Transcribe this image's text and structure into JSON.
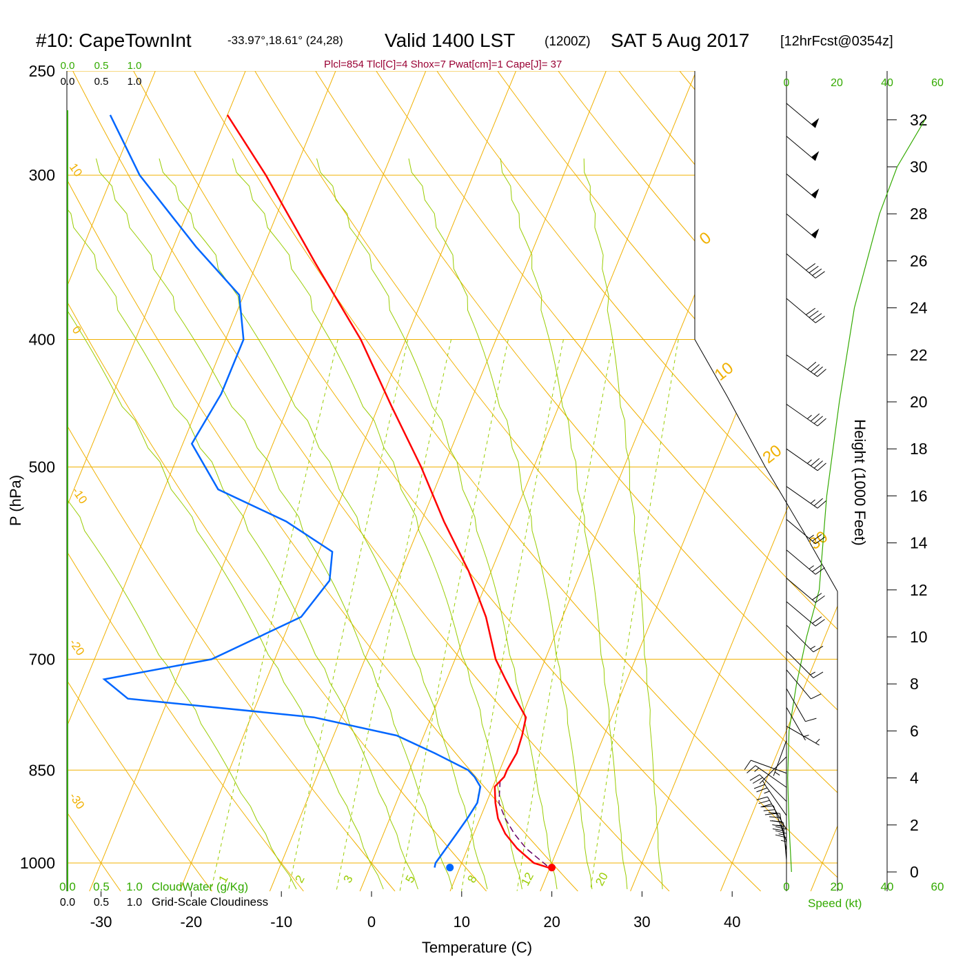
{
  "header": {
    "station": "#10: CapeTownInt",
    "coords": "-33.97°,18.61° (24,28)",
    "valid": "Valid 1400 LST",
    "utc": "(1200Z)",
    "date": "SAT 5 Aug 2017",
    "forecast": "[12hrFcst@0354z]",
    "indices": "Plcl=854 Tlcl[C]=4 Shox=7 Pwat[cm]=1 Cape[J]= 37"
  },
  "colors": {
    "isotherm": "#f0b000",
    "mixing_ratio": "#99cc00",
    "temperature": "#ff0000",
    "dewpoint": "#0066ff",
    "parcel": "#660066",
    "green_text": "#33aa00",
    "index_text": "#990033"
  },
  "chart_data": {
    "type": "line",
    "xlabel": "Temperature (C)",
    "ylabel": "P (hPa)",
    "y2label": "Height (1000 Feet)",
    "x_ticks": [
      "-30",
      "-20",
      "-10",
      "0",
      "10",
      "20",
      "30",
      "40"
    ],
    "pressure_ticks": [
      "250",
      "300",
      "400",
      "500",
      "700",
      "850",
      "1000"
    ],
    "height_ticks": [
      "0",
      "2",
      "4",
      "6",
      "8",
      "10",
      "12",
      "14",
      "16",
      "18",
      "20",
      "22",
      "24",
      "26",
      "28",
      "30",
      "32"
    ],
    "isotherm_labels_left": [
      "10",
      "0",
      "-10",
      "-20",
      "-30"
    ],
    "isotherm_labels_right": [
      "0",
      "10",
      "20",
      "30"
    ],
    "mixing_ratio_labels": [
      "1",
      "2",
      "3",
      "5",
      "8",
      "12",
      "20"
    ],
    "cloud_scale_top_green": [
      "0.0",
      "0.5",
      "1.0"
    ],
    "cloud_scale_top_black": [
      "0.0",
      "0.5",
      "1.0"
    ],
    "cloud_scale_bottom_green": [
      "0.0",
      "0.5",
      "1.0"
    ],
    "cloud_scale_bottom_black": [
      "0.0",
      "0.5",
      "1.0"
    ],
    "cloudwater_label": "CloudWater (g/Kg)",
    "cloudiness_label": "Grid-Scale Cloudiness",
    "speed_ticks_top": [
      "0",
      "20",
      "40",
      "60"
    ],
    "speed_ticks_bottom": [
      "0",
      "20",
      "40",
      "60"
    ],
    "speed_label": "Speed (kt)",
    "temperature_profile": [
      {
        "p": 1008,
        "t": 19.8
      },
      {
        "p": 1000,
        "t": 18.0
      },
      {
        "p": 975,
        "t": 15.5
      },
      {
        "p": 950,
        "t": 13.5
      },
      {
        "p": 925,
        "t": 12.0
      },
      {
        "p": 900,
        "t": 11.0
      },
      {
        "p": 875,
        "t": 10.2
      },
      {
        "p": 860,
        "t": 10.8
      },
      {
        "p": 850,
        "t": 10.8
      },
      {
        "p": 825,
        "t": 11.1
      },
      {
        "p": 800,
        "t": 10.9
      },
      {
        "p": 775,
        "t": 10.5
      },
      {
        "p": 750,
        "t": 8.5
      },
      {
        "p": 725,
        "t": 6.5
      },
      {
        "p": 700,
        "t": 4.5
      },
      {
        "p": 650,
        "t": 1.5
      },
      {
        "p": 600,
        "t": -2.5
      },
      {
        "p": 550,
        "t": -7.5
      },
      {
        "p": 500,
        "t": -12.5
      },
      {
        "p": 450,
        "t": -18.5
      },
      {
        "p": 400,
        "t": -25.0
      },
      {
        "p": 350,
        "t": -33.5
      },
      {
        "p": 300,
        "t": -43.0
      },
      {
        "p": 270,
        "t": -50.0
      }
    ],
    "dewpoint_profile": [
      {
        "p": 1008,
        "t": 7.2
      },
      {
        "p": 1000,
        "t": 7.1
      },
      {
        "p": 975,
        "t": 7.6
      },
      {
        "p": 950,
        "t": 8.1
      },
      {
        "p": 925,
        "t": 8.6
      },
      {
        "p": 900,
        "t": 9.0
      },
      {
        "p": 875,
        "t": 8.6
      },
      {
        "p": 860,
        "t": 7.5
      },
      {
        "p": 850,
        "t": 6.5
      },
      {
        "p": 825,
        "t": 2.0
      },
      {
        "p": 800,
        "t": -3.0
      },
      {
        "p": 775,
        "t": -13.0
      },
      {
        "p": 750,
        "t": -34.5
      },
      {
        "p": 725,
        "t": -38.0
      },
      {
        "p": 700,
        "t": -27.0
      },
      {
        "p": 650,
        "t": -19.0
      },
      {
        "p": 610,
        "t": -17.5
      },
      {
        "p": 580,
        "t": -18.5
      },
      {
        "p": 550,
        "t": -25.0
      },
      {
        "p": 520,
        "t": -34.0
      },
      {
        "p": 480,
        "t": -39.0
      },
      {
        "p": 440,
        "t": -38.0
      },
      {
        "p": 400,
        "t": -38.0
      },
      {
        "p": 370,
        "t": -40.5
      },
      {
        "p": 340,
        "t": -47.5
      },
      {
        "p": 300,
        "t": -57.0
      },
      {
        "p": 270,
        "t": -63.0
      }
    ],
    "parcel_profile": [
      {
        "p": 1005,
        "t": 19.6
      },
      {
        "p": 975,
        "t": 16.5
      },
      {
        "p": 950,
        "t": 14.5
      },
      {
        "p": 925,
        "t": 12.8
      },
      {
        "p": 900,
        "t": 11.4
      },
      {
        "p": 865,
        "t": 10.5
      }
    ],
    "surface_temp": {
      "p": 1008,
      "t": 20.2
    },
    "surface_dewpoint": {
      "p": 1008,
      "t": 8.9
    },
    "height_profile": [
      {
        "h": 0,
        "kt": 2
      },
      {
        "h": 2,
        "kt": 1
      },
      {
        "h": 4,
        "kt": 0.5
      },
      {
        "h": 6,
        "kt": 1
      },
      {
        "h": 8,
        "kt": 4
      },
      {
        "h": 10,
        "kt": 8
      },
      {
        "h": 12,
        "kt": 13
      },
      {
        "h": 16,
        "kt": 16
      },
      {
        "h": 20,
        "kt": 21
      },
      {
        "h": 24,
        "kt": 27
      },
      {
        "h": 28,
        "kt": 37
      },
      {
        "h": 30,
        "kt": 44
      },
      {
        "h": 32,
        "kt": 55
      }
    ],
    "wind_barbs": [
      {
        "h": 0.2,
        "dir": 180,
        "kt": 35
      },
      {
        "h": 0.5,
        "dir": 175,
        "kt": 35
      },
      {
        "h": 0.9,
        "dir": 170,
        "kt": 35
      },
      {
        "h": 1.3,
        "dir": 160,
        "kt": 30
      },
      {
        "h": 1.8,
        "dir": 150,
        "kt": 30
      },
      {
        "h": 2.4,
        "dir": 145,
        "kt": 25
      },
      {
        "h": 3.0,
        "dir": 135,
        "kt": 20
      },
      {
        "h": 3.6,
        "dir": 125,
        "kt": 15
      },
      {
        "h": 4.2,
        "dir": 110,
        "kt": 10
      },
      {
        "h": 4.9,
        "dir": 45,
        "kt": 5
      },
      {
        "h": 5.6,
        "dir": 20,
        "kt": 5
      },
      {
        "h": 6.2,
        "dir": 300,
        "kt": 5
      },
      {
        "h": 7.0,
        "dir": 330,
        "kt": 5
      },
      {
        "h": 7.8,
        "dir": 330,
        "kt": 10
      },
      {
        "h": 8.6,
        "dir": 320,
        "kt": 10
      },
      {
        "h": 9.4,
        "dir": 315,
        "kt": 15
      },
      {
        "h": 10.5,
        "dir": 315,
        "kt": 15
      },
      {
        "h": 11.5,
        "dir": 310,
        "kt": 20
      },
      {
        "h": 12.5,
        "dir": 310,
        "kt": 20
      },
      {
        "h": 13.7,
        "dir": 310,
        "kt": 25
      },
      {
        "h": 15.0,
        "dir": 310,
        "kt": 25
      },
      {
        "h": 16.4,
        "dir": 305,
        "kt": 25
      },
      {
        "h": 18.0,
        "dir": 305,
        "kt": 35
      },
      {
        "h": 19.9,
        "dir": 305,
        "kt": 35
      },
      {
        "h": 22.0,
        "dir": 305,
        "kt": 40
      },
      {
        "h": 24.4,
        "dir": 310,
        "kt": 40
      },
      {
        "h": 26.3,
        "dir": 310,
        "kt": 40
      },
      {
        "h": 28.0,
        "dir": 310,
        "kt": 50
      },
      {
        "h": 29.7,
        "dir": 310,
        "kt": 50
      },
      {
        "h": 31.3,
        "dir": 310,
        "kt": 50
      },
      {
        "h": 32.7,
        "dir": 310,
        "kt": 50
      }
    ]
  }
}
